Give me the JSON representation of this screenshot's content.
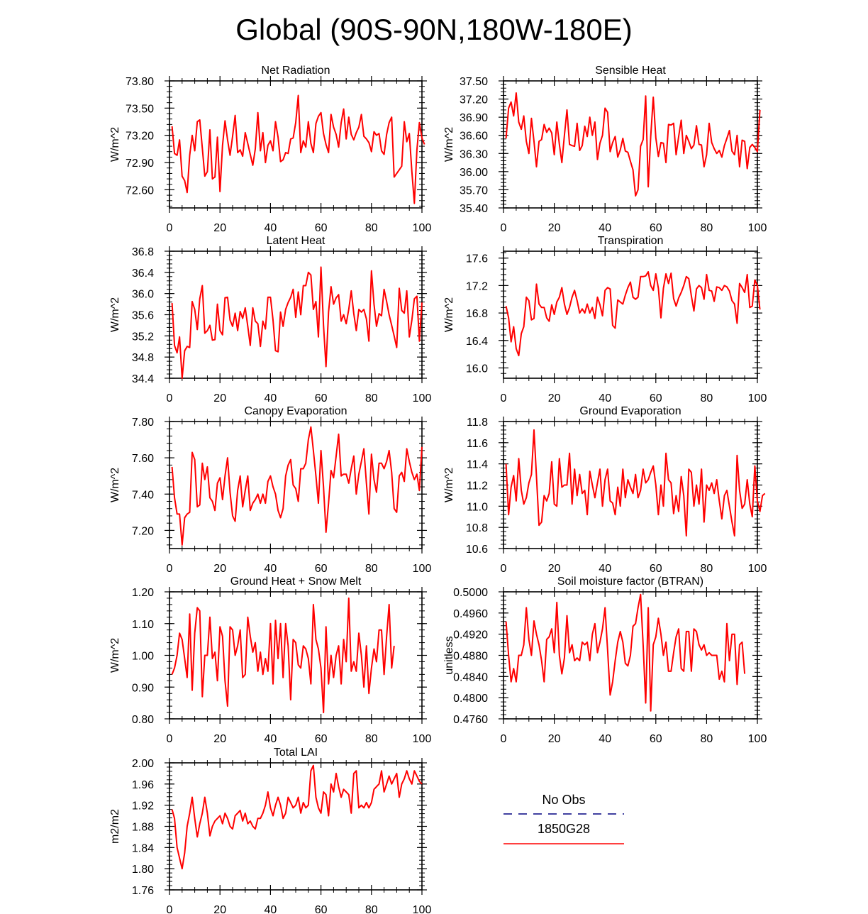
{
  "title": "Global (90S-90N,180W-180E)",
  "line_color": "#ff0000",
  "obs_color": "#000080",
  "legend": {
    "obs_label": "No Obs",
    "model_label": "1850G28"
  },
  "chart_data": [
    {
      "type": "line",
      "title": "Net Radiation",
      "ylabel": "W/m^2",
      "xlim": [
        0,
        100
      ],
      "ylim": [
        72.4,
        73.8
      ],
      "yticks": [
        "73.80",
        "73.50",
        "73.20",
        "72.90",
        "72.60"
      ],
      "xticks": [
        "0",
        "20",
        "40",
        "60",
        "80",
        "100"
      ],
      "x_start": 1,
      "values": [
        73.3,
        73.0,
        72.98,
        73.15,
        72.75,
        72.7,
        72.57,
        72.98,
        73.2,
        73.03,
        73.35,
        73.37,
        73.06,
        72.75,
        72.8,
        73.26,
        72.72,
        72.74,
        73.18,
        72.58,
        73.09,
        73.36,
        73.15,
        72.98,
        73.19,
        73.42,
        73.01,
        73.04,
        72.97,
        73.23,
        73.11,
        72.99,
        72.87,
        73.05,
        73.45,
        73.03,
        73.23,
        72.9,
        73.09,
        73.14,
        73.03,
        73.35,
        73.18,
        72.91,
        72.93,
        73.01,
        73.0,
        73.16,
        73.17,
        73.34,
        73.64,
        73.01,
        73.14,
        73.07,
        73.35,
        73.11,
        73.01,
        73.33,
        73.41,
        73.45,
        73.22,
        73.1,
        73.01,
        73.43,
        73.29,
        73.21,
        73.07,
        73.34,
        73.49,
        73.16,
        73.4,
        73.21,
        73.15,
        73.23,
        73.29,
        73.43,
        73.19,
        73.16,
        73.12,
        73.02,
        73.24,
        73.2,
        73.22,
        73.03,
        72.99,
        73.21,
        73.34,
        73.4,
        72.74,
        72.78,
        72.82,
        72.86,
        73.35,
        73.13,
        73.22,
        72.8,
        72.45,
        73.04,
        73.34,
        73.17,
        73.1
      ]
    },
    {
      "type": "line",
      "title": "Sensible Heat",
      "ylabel": "W/m^2",
      "xlim": [
        0,
        100
      ],
      "ylim": [
        35.4,
        37.5
      ],
      "yticks": [
        "37.50",
        "37.20",
        "36.90",
        "36.60",
        "36.30",
        "36.00",
        "35.70",
        "35.40"
      ],
      "xticks": [
        "0",
        "20",
        "40",
        "60",
        "80",
        "100"
      ],
      "x_start": 1,
      "values": [
        36.55,
        37.05,
        37.15,
        36.92,
        37.3,
        36.82,
        36.7,
        36.92,
        36.5,
        36.3,
        36.88,
        36.5,
        36.08,
        36.5,
        36.53,
        36.78,
        36.65,
        36.72,
        36.64,
        36.28,
        36.82,
        36.45,
        36.15,
        36.6,
        37.02,
        36.45,
        36.43,
        36.42,
        36.8,
        36.35,
        36.43,
        36.75,
        36.58,
        36.9,
        36.6,
        36.82,
        36.2,
        36.47,
        36.6,
        37.05,
        36.98,
        36.33,
        36.48,
        36.58,
        36.24,
        36.36,
        36.55,
        36.34,
        36.32,
        36.17,
        36.03,
        35.6,
        35.7,
        36.42,
        36.53,
        37.25,
        35.75,
        36.58,
        37.23,
        36.56,
        36.25,
        36.48,
        36.47,
        36.15,
        36.78,
        36.77,
        36.8,
        36.28,
        36.58,
        36.85,
        36.3,
        36.6,
        36.5,
        36.38,
        36.44,
        36.76,
        36.45,
        36.44,
        36.08,
        36.28,
        36.8,
        36.48,
        36.38,
        36.3,
        36.35,
        36.24,
        36.43,
        36.55,
        36.68,
        36.34,
        36.28,
        36.6,
        36.08,
        36.52,
        36.5,
        36.05,
        36.4,
        36.45,
        36.4,
        36.33,
        37.02
      ]
    },
    {
      "type": "line",
      "title": "Latent Heat",
      "ylabel": "W/m^2",
      "xlim": [
        0,
        100
      ],
      "ylim": [
        34.4,
        36.8
      ],
      "yticks": [
        "36.8",
        "36.4",
        "36.0",
        "35.6",
        "35.2",
        "34.8",
        "34.4"
      ],
      "xticks": [
        "0",
        "20",
        "40",
        "60",
        "80",
        "100"
      ],
      "x_start": 1,
      "values": [
        35.82,
        35.02,
        34.88,
        35.18,
        34.4,
        34.92,
        35.0,
        34.98,
        35.85,
        35.7,
        35.32,
        35.9,
        36.15,
        35.25,
        35.3,
        35.4,
        35.12,
        35.13,
        35.8,
        35.3,
        35.22,
        35.92,
        35.93,
        35.5,
        35.38,
        35.63,
        35.3,
        35.66,
        35.53,
        35.73,
        35.38,
        35.02,
        35.73,
        35.48,
        35.43,
        35.0,
        35.48,
        35.33,
        35.93,
        35.93,
        35.5,
        34.92,
        34.9,
        35.65,
        35.38,
        35.7,
        35.83,
        35.93,
        36.08,
        35.55,
        36.03,
        35.6,
        36.15,
        36.15,
        36.4,
        36.35,
        35.7,
        35.85,
        35.18,
        36.5,
        35.4,
        34.62,
        35.65,
        36.13,
        35.8,
        35.92,
        35.98,
        35.48,
        35.6,
        35.43,
        35.7,
        36.05,
        35.62,
        35.3,
        35.7,
        35.65,
        35.7,
        35.52,
        35.1,
        36.43,
        35.8,
        35.38,
        35.62,
        35.58,
        36.08,
        35.85,
        35.6,
        35.4,
        35.2,
        34.98,
        36.1,
        35.68,
        35.63,
        36.05,
        35.18,
        35.5,
        35.9,
        35.95,
        35.1,
        35.83
      ]
    },
    {
      "type": "line",
      "title": "Transpiration",
      "ylabel": "W/m^2",
      "xlim": [
        0,
        100
      ],
      "ylim": [
        15.85,
        17.7
      ],
      "yticks": [
        "17.6",
        "17.2",
        "16.8",
        "16.4",
        "16.0"
      ],
      "xticks": [
        "0",
        "20",
        "40",
        "60",
        "80",
        "100"
      ],
      "x_start": 1,
      "values": [
        16.9,
        16.73,
        16.38,
        16.6,
        16.28,
        16.18,
        16.5,
        16.6,
        17.03,
        16.98,
        16.7,
        16.72,
        17.22,
        16.93,
        16.88,
        16.88,
        16.73,
        16.68,
        16.92,
        16.78,
        16.96,
        17.03,
        17.17,
        16.93,
        16.78,
        16.88,
        17.03,
        17.13,
        16.98,
        16.8,
        16.86,
        16.8,
        16.93,
        16.8,
        16.88,
        16.72,
        17.03,
        16.92,
        16.76,
        17.13,
        17.17,
        17.15,
        16.62,
        16.58,
        16.99,
        16.96,
        16.93,
        17.06,
        17.17,
        17.25,
        17.03,
        17.0,
        17.03,
        17.33,
        17.33,
        17.34,
        17.4,
        17.2,
        17.13,
        17.37,
        17.16,
        16.73,
        17.16,
        17.37,
        17.23,
        17.38,
        17.01,
        16.9,
        17.02,
        17.1,
        17.2,
        17.33,
        17.3,
        17.05,
        16.83,
        17.15,
        17.2,
        17.17,
        17.0,
        17.36,
        17.13,
        17.12,
        16.97,
        17.18,
        17.17,
        17.13,
        17.2,
        17.18,
        17.12,
        16.98,
        16.93,
        16.65,
        17.23,
        17.17,
        17.1,
        17.36,
        16.88,
        16.9,
        17.28,
        17.2,
        16.85
      ]
    },
    {
      "type": "line",
      "title": "Canopy Evaporation",
      "ylabel": "W/m^2",
      "xlim": [
        0,
        100
      ],
      "ylim": [
        7.1,
        7.8
      ],
      "yticks": [
        "7.80",
        "7.60",
        "7.40",
        "7.20"
      ],
      "xticks": [
        "0",
        "20",
        "40",
        "60",
        "80",
        "100"
      ],
      "x_start": 1,
      "values": [
        7.55,
        7.38,
        7.29,
        7.29,
        7.12,
        7.27,
        7.29,
        7.3,
        7.63,
        7.59,
        7.33,
        7.34,
        7.57,
        7.48,
        7.55,
        7.38,
        7.36,
        7.31,
        7.46,
        7.49,
        7.37,
        7.5,
        7.6,
        7.41,
        7.28,
        7.25,
        7.42,
        7.5,
        7.33,
        7.42,
        7.5,
        7.31,
        7.35,
        7.37,
        7.4,
        7.35,
        7.4,
        7.35,
        7.47,
        7.5,
        7.44,
        7.4,
        7.31,
        7.27,
        7.32,
        7.5,
        7.56,
        7.59,
        7.45,
        7.43,
        7.36,
        7.54,
        7.54,
        7.57,
        7.7,
        7.77,
        7.64,
        7.5,
        7.35,
        7.64,
        7.44,
        7.19,
        7.35,
        7.53,
        7.49,
        7.61,
        7.73,
        7.5,
        7.51,
        7.51,
        7.46,
        7.54,
        7.61,
        7.4,
        7.51,
        7.58,
        7.65,
        7.46,
        7.29,
        7.62,
        7.48,
        7.41,
        7.57,
        7.57,
        7.54,
        7.58,
        7.64,
        7.52,
        7.32,
        7.3,
        7.5,
        7.52,
        7.47,
        7.65,
        7.58,
        7.52,
        7.48,
        7.51,
        7.42,
        7.66
      ]
    },
    {
      "type": "line",
      "title": "Ground Evaporation",
      "ylabel": "W/m^2",
      "xlim": [
        0,
        100
      ],
      "ylim": [
        10.6,
        11.8
      ],
      "yticks": [
        "11.8",
        "11.6",
        "11.4",
        "11.2",
        "11.0",
        "10.8",
        "10.6"
      ],
      "xticks": [
        "0",
        "20",
        "40",
        "60",
        "80",
        "100"
      ],
      "x_start": 1,
      "values": [
        11.4,
        10.92,
        11.18,
        11.29,
        11.05,
        11.45,
        11.15,
        11.02,
        11.08,
        11.22,
        11.3,
        11.72,
        11.28,
        10.82,
        10.85,
        11.1,
        11.05,
        11.12,
        11.42,
        11.02,
        11.0,
        11.45,
        11.18,
        11.2,
        11.2,
        11.5,
        11.02,
        11.35,
        11.1,
        11.3,
        11.12,
        11.15,
        10.92,
        11.33,
        11.2,
        11.08,
        11.22,
        11.35,
        11.0,
        11.25,
        11.35,
        11.05,
        11.03,
        10.92,
        11.18,
        11.0,
        11.35,
        11.08,
        11.25,
        11.18,
        11.12,
        11.3,
        11.08,
        11.15,
        11.35,
        11.22,
        11.25,
        11.32,
        11.38,
        11.2,
        10.92,
        11.2,
        11.0,
        11.5,
        11.25,
        11.22,
        10.93,
        11.1,
        10.95,
        11.28,
        11.1,
        10.72,
        11.35,
        11.32,
        11.0,
        11.2,
        11.02,
        11.35,
        10.85,
        11.2,
        11.15,
        11.22,
        11.12,
        11.25,
        11.05,
        10.88,
        11.1,
        11.15,
        11.0,
        10.85,
        10.72,
        11.48,
        11.15,
        10.98,
        11.02,
        11.25,
        11.02,
        10.9,
        11.38,
        11.05,
        10.95,
        11.1,
        11.12
      ]
    },
    {
      "type": "line",
      "title": "Ground Heat + Snow Melt",
      "ylabel": "W/m^2",
      "xlim": [
        0,
        100
      ],
      "ylim": [
        0.8,
        1.2
      ],
      "yticks": [
        "1.20",
        "1.10",
        "1.00",
        "0.90",
        "0.80"
      ],
      "xticks": [
        "0",
        "20",
        "40",
        "60",
        "80",
        "100"
      ],
      "x_start": 1,
      "values": [
        0.94,
        0.96,
        1.0,
        1.07,
        1.05,
        0.99,
        0.93,
        1.13,
        0.89,
        1.07,
        1.15,
        1.14,
        0.87,
        1.0,
        1.0,
        1.12,
        0.99,
        1.01,
        0.92,
        1.09,
        1.06,
        0.92,
        0.84,
        1.09,
        1.08,
        1.0,
        1.03,
        1.08,
        0.93,
        0.94,
        1.12,
        1.06,
        1.01,
        1.04,
        0.95,
        1.01,
        0.94,
        0.99,
        0.95,
        1.1,
        0.91,
        1.11,
        0.99,
        1.1,
        0.93,
        1.1,
        1.03,
        0.86,
        1.05,
        1.04,
        0.97,
        0.96,
        1.03,
        1.02,
        0.99,
        0.91,
        1.16,
        1.05,
        1.02,
        0.96,
        0.82,
        1.09,
        0.91,
        1.0,
        0.93,
        1.0,
        1.03,
        0.91,
        1.05,
        0.98,
        1.18,
        0.95,
        0.98,
        0.95,
        1.07,
        1.0,
        0.9,
        1.03,
        0.88,
        0.96,
        1.02,
        0.98,
        1.08,
        1.08,
        0.94,
        1.06,
        1.16,
        0.96,
        1.03
      ]
    },
    {
      "type": "line",
      "title": "Soil moisture factor (BTRAN)",
      "ylabel": "unitless",
      "xlim": [
        0,
        100
      ],
      "ylim": [
        0.476,
        0.5
      ],
      "yticks": [
        "0.5000",
        "0.4960",
        "0.4920",
        "0.4880",
        "0.4840",
        "0.4800",
        "0.4760"
      ],
      "xticks": [
        "0",
        "20",
        "40",
        "60",
        "80",
        "100"
      ],
      "x_start": 1,
      "values": [
        0.4944,
        0.488,
        0.483,
        0.4855,
        0.483,
        0.488,
        0.488,
        0.49,
        0.497,
        0.491,
        0.488,
        0.4945,
        0.492,
        0.49,
        0.487,
        0.483,
        0.491,
        0.4915,
        0.493,
        0.4885,
        0.498,
        0.488,
        0.4845,
        0.4875,
        0.4955,
        0.4885,
        0.49,
        0.487,
        0.4875,
        0.487,
        0.4905,
        0.49,
        0.4905,
        0.487,
        0.492,
        0.494,
        0.4885,
        0.4905,
        0.493,
        0.497,
        0.489,
        0.4805,
        0.483,
        0.487,
        0.4905,
        0.4925,
        0.4905,
        0.4865,
        0.486,
        0.488,
        0.4935,
        0.494,
        0.497,
        0.4995,
        0.49,
        0.479,
        0.497,
        0.4775,
        0.49,
        0.4915,
        0.495,
        0.492,
        0.488,
        0.4905,
        0.485,
        0.485,
        0.4885,
        0.4915,
        0.493,
        0.4855,
        0.485,
        0.4925,
        0.4925,
        0.485,
        0.493,
        0.4925,
        0.49,
        0.489,
        0.49,
        0.488,
        0.4885,
        0.488,
        0.488,
        0.488,
        0.4835,
        0.485,
        0.483,
        0.494,
        0.487,
        0.492,
        0.492,
        0.4825,
        0.49,
        0.4905,
        0.4845
      ]
    },
    {
      "type": "line",
      "title": "Total LAI",
      "ylabel": "m2/m2",
      "xlim": [
        0,
        100
      ],
      "ylim": [
        1.76,
        2.0
      ],
      "yticks": [
        "2.00",
        "1.96",
        "1.92",
        "1.88",
        "1.84",
        "1.80",
        "1.76"
      ],
      "xticks": [
        "0",
        "20",
        "40",
        "60",
        "80",
        "100"
      ],
      "x_start": 1,
      "values": [
        1.912,
        1.895,
        1.84,
        1.82,
        1.8,
        1.83,
        1.88,
        1.905,
        1.935,
        1.895,
        1.86,
        1.885,
        1.905,
        1.935,
        1.905,
        1.862,
        1.88,
        1.89,
        1.895,
        1.9,
        1.885,
        1.905,
        1.895,
        1.88,
        1.875,
        1.9,
        1.905,
        1.91,
        1.89,
        1.905,
        1.885,
        1.89,
        1.88,
        1.875,
        1.895,
        1.895,
        1.905,
        1.92,
        1.945,
        1.915,
        1.9,
        1.92,
        1.935,
        1.92,
        1.895,
        1.905,
        1.935,
        1.925,
        1.915,
        1.92,
        1.935,
        1.905,
        1.925,
        1.915,
        1.92,
        1.985,
        1.995,
        1.935,
        1.915,
        1.905,
        1.945,
        1.94,
        1.9,
        1.96,
        1.945,
        1.98,
        1.955,
        1.935,
        1.95,
        1.945,
        1.94,
        1.905,
        1.98,
        1.985,
        1.915,
        1.92,
        1.915,
        1.925,
        1.915,
        1.925,
        1.95,
        1.955,
        1.96,
        1.985,
        1.945,
        1.96,
        1.975,
        1.96,
        1.97,
        1.98,
        1.935,
        1.96,
        1.97,
        1.985,
        1.97,
        1.96,
        1.985,
        1.975,
        1.965,
        1.96
      ]
    }
  ]
}
